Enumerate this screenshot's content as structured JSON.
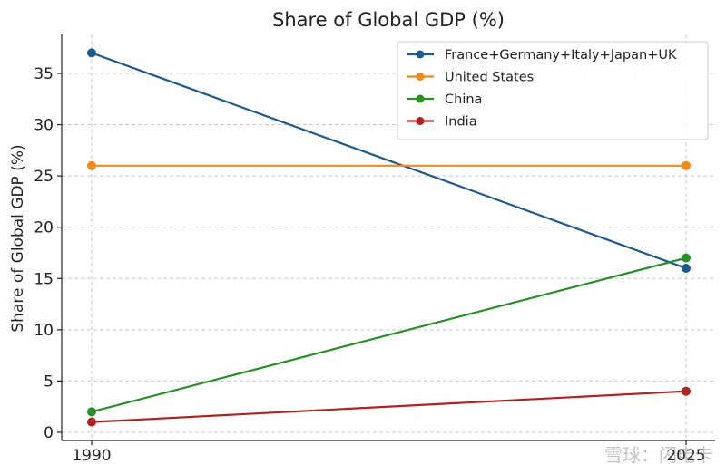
{
  "chart_data": {
    "type": "line",
    "title": "Share of Global GDP (%)",
    "xlabel": "",
    "ylabel": "Share of Global GDP (%)",
    "x": [
      "1990",
      "2025"
    ],
    "ylim": [
      -0.8,
      38.8
    ],
    "yticks": [
      0,
      5,
      10,
      15,
      20,
      25,
      30,
      35
    ],
    "grid": true,
    "legend_position": "top-right",
    "series": [
      {
        "name": "France+Germany+Italy+Japan+UK",
        "values": [
          37,
          16
        ],
        "color": "#1f5a8a"
      },
      {
        "name": "United States",
        "values": [
          26,
          26
        ],
        "color": "#ef8a1f"
      },
      {
        "name": "China",
        "values": [
          2,
          17
        ],
        "color": "#2a8f2a"
      },
      {
        "name": "India",
        "values": [
          1,
          4
        ],
        "color": "#b22222"
      }
    ]
  },
  "watermark": "雪球：闪电卡"
}
